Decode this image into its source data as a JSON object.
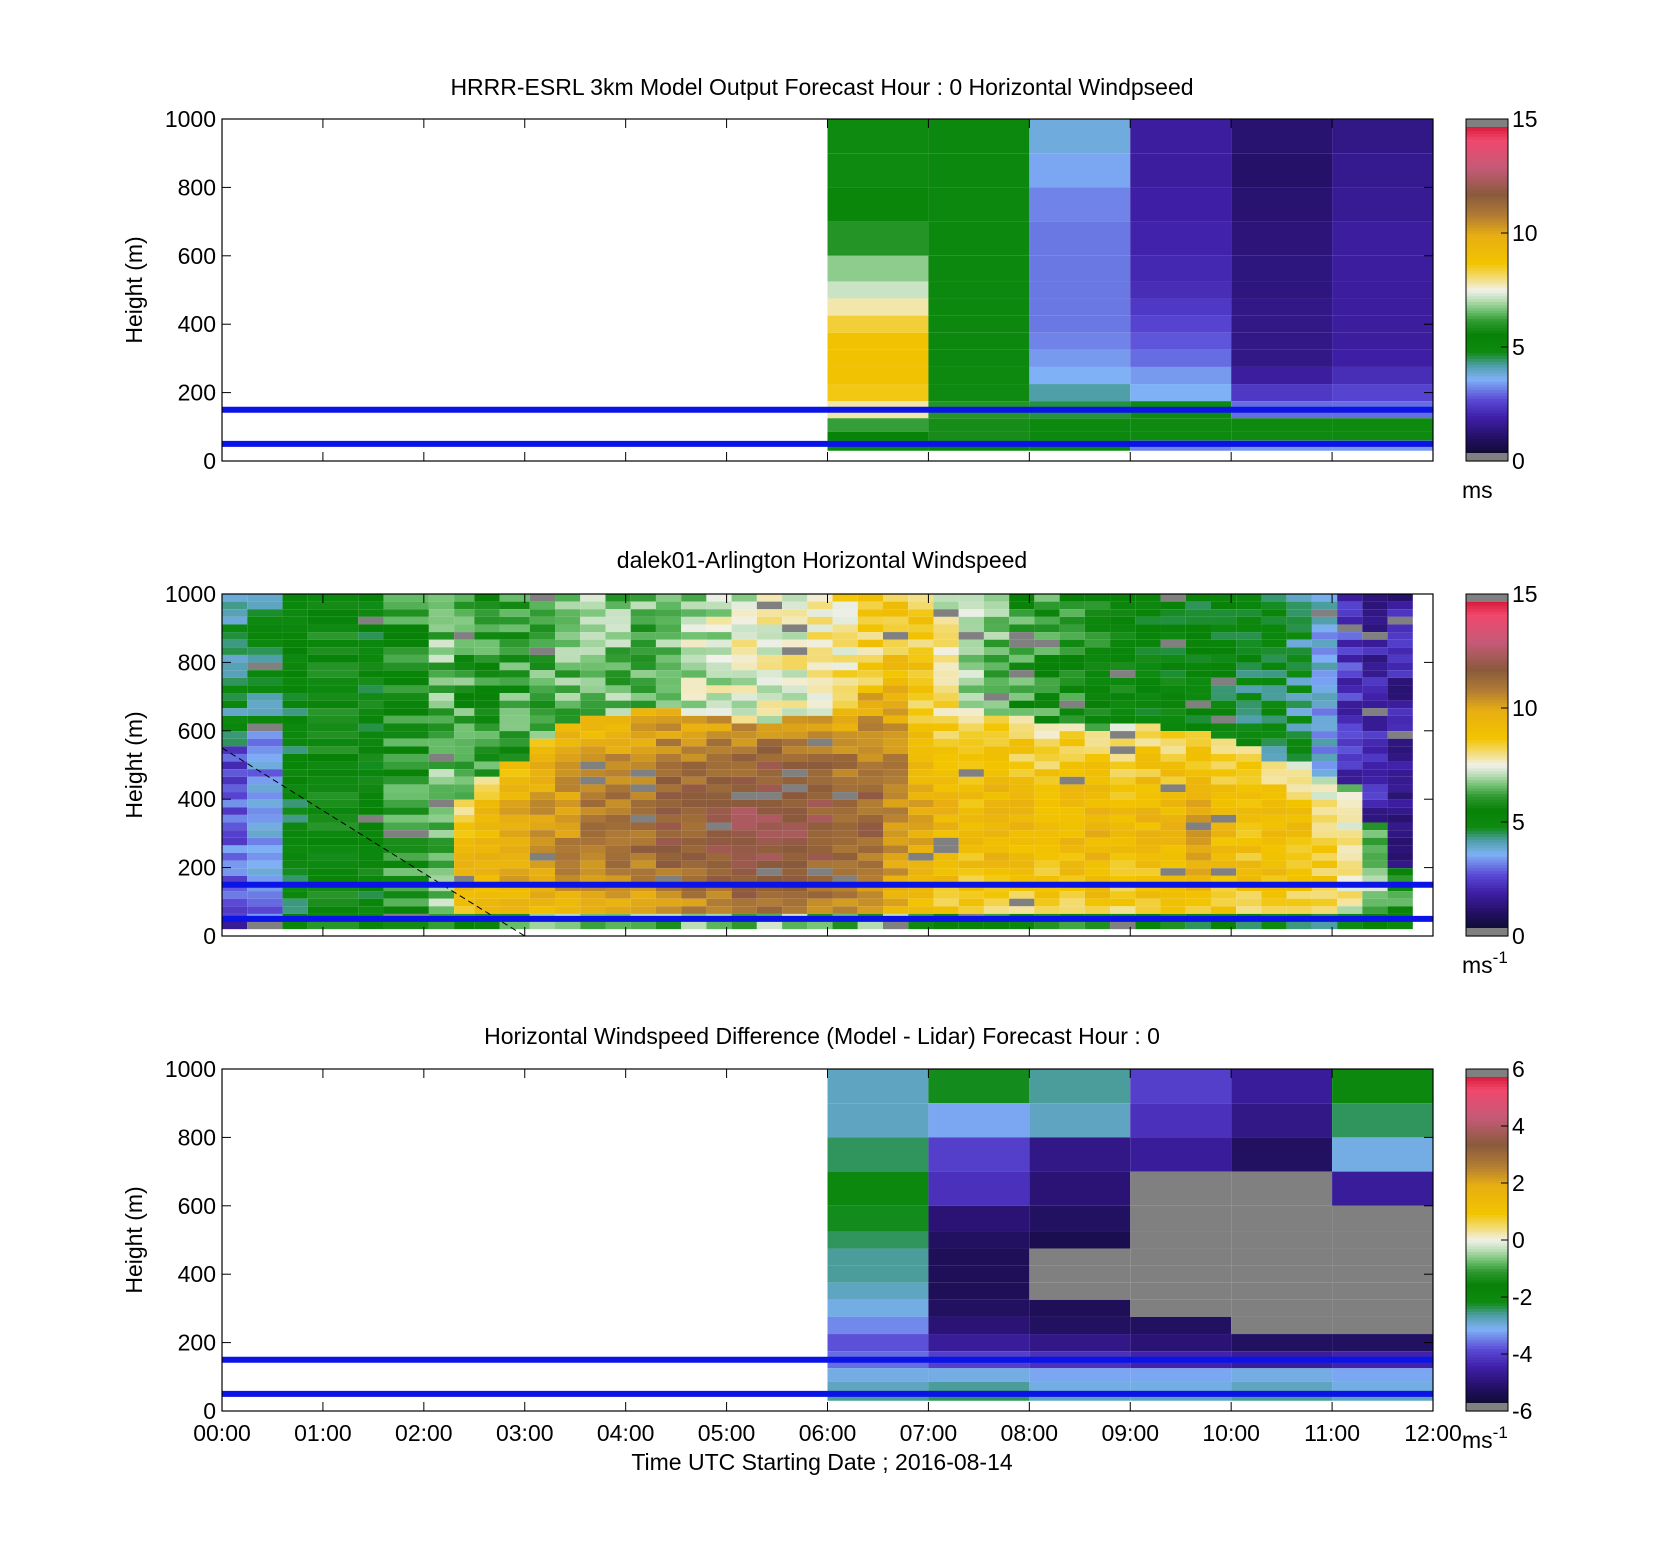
{
  "figure": {
    "xlabel": "Time UTC  Starting Date ; 2016-08-14",
    "x_ticks": [
      "00:00",
      "01:00",
      "02:00",
      "03:00",
      "04:00",
      "05:00",
      "06:00",
      "07:00",
      "08:00",
      "09:00",
      "10:00",
      "11:00",
      "12:00"
    ]
  },
  "chart_data": [
    {
      "type": "heatmap",
      "title": "HRRR-ESRL 3km Model Output   Forecast Hour : 0 Horizontal Windpseed",
      "ylabel": "Height (m)",
      "xlim_hours": [
        0,
        12
      ],
      "ylim": [
        0,
        1000
      ],
      "y_ticks": [
        0,
        200,
        400,
        600,
        800,
        1000
      ],
      "x_ticks_labeled": false,
      "colorbar": {
        "min": 0,
        "max": 15,
        "ticks": [
          0,
          5,
          10,
          15
        ],
        "unit": "ms",
        "unit_sup": ""
      },
      "reference_lines_m": [
        50,
        150
      ],
      "bin_top_m": 1000,
      "bin_bottom_m": 30,
      "hours": [
        6,
        7,
        8,
        9,
        10,
        11
      ],
      "heights_m": [
        950,
        850,
        750,
        650,
        550,
        500,
        450,
        400,
        350,
        300,
        250,
        200,
        150,
        100,
        70,
        50
      ],
      "values": [
        [
          4.8,
          4.8,
          5.2,
          6.0,
          6.8,
          7.2,
          7.8,
          8.4,
          8.8,
          8.8,
          8.8,
          8.6,
          7.8,
          6.2,
          5.5,
          5.0
        ],
        [
          5.0,
          5.0,
          5.0,
          5.0,
          5.0,
          5.0,
          5.0,
          5.0,
          5.0,
          5.0,
          4.9,
          4.8,
          6.0,
          5.8,
          5.8,
          5.4
        ],
        [
          3.8,
          3.5,
          3.2,
          3.1,
          3.1,
          3.1,
          3.1,
          3.1,
          3.2,
          3.4,
          3.6,
          4.2,
          4.6,
          4.9,
          5.0,
          5.0
        ],
        [
          1.8,
          1.8,
          1.9,
          2.0,
          2.1,
          2.2,
          2.4,
          2.6,
          2.8,
          3.0,
          3.4,
          3.6,
          4.8,
          4.8,
          4.8,
          3.2
        ],
        [
          1.2,
          1.1,
          1.2,
          1.3,
          1.4,
          1.4,
          1.5,
          1.5,
          1.5,
          1.5,
          1.8,
          2.4,
          3.0,
          4.8,
          4.8,
          3.4
        ],
        [
          1.5,
          1.6,
          1.7,
          1.8,
          1.8,
          1.8,
          1.8,
          1.8,
          1.8,
          1.9,
          2.2,
          2.6,
          3.0,
          4.8,
          4.8,
          3.4
        ]
      ]
    },
    {
      "type": "heatmap",
      "title": "dalek01-Arlington  Horizontal Windspeed",
      "ylabel": "Height (m)",
      "xlim_hours": [
        0,
        12
      ],
      "ylim": [
        0,
        1000
      ],
      "y_ticks": [
        0,
        200,
        400,
        600,
        800,
        1000
      ],
      "x_ticks_labeled": false,
      "colorbar": {
        "min": 0,
        "max": 15,
        "ticks": [
          0,
          5,
          10,
          15
        ],
        "unit": "ms",
        "unit_sup": "-1"
      },
      "reference_lines_m": [
        50,
        150
      ],
      "dashed_line": {
        "from": [
          0,
          550
        ],
        "to": [
          3.0,
          0
        ]
      },
      "profile_start_hours": [
        0.0,
        0.25,
        0.6,
        0.85,
        1.35,
        1.6,
        2.05,
        2.3,
        2.5,
        2.75,
        3.05,
        3.3,
        3.55,
        3.8,
        4.05,
        4.3,
        4.55,
        4.8,
        5.05,
        5.3,
        5.55,
        5.8,
        6.05,
        6.3,
        6.55,
        6.8,
        7.05,
        7.3,
        7.55,
        7.8,
        8.05,
        8.3,
        8.55,
        8.8,
        9.05,
        9.3,
        9.55,
        9.8,
        10.05,
        10.3,
        10.55,
        10.8,
        11.05,
        11.3,
        11.55
      ],
      "profile_end_hour": 11.8,
      "surface_m": [
        0,
        0,
        0,
        0,
        0,
        0,
        0,
        0,
        0,
        0,
        0,
        0,
        0,
        0,
        0,
        0,
        0,
        0,
        0,
        0,
        0,
        0,
        0,
        0,
        0,
        0,
        0,
        0,
        0,
        0,
        0,
        0,
        0,
        0,
        0,
        0,
        0,
        0,
        0,
        0,
        0,
        0,
        0,
        0,
        0
      ],
      "layer_top_m": [
        560,
        600,
        0,
        0,
        0,
        0,
        80,
        400,
        460,
        520,
        580,
        620,
        640,
        650,
        660,
        660,
        650,
        640,
        620,
        630,
        640,
        650,
        660,
        720,
        800,
        720,
        680,
        660,
        640,
        640,
        620,
        620,
        610,
        620,
        620,
        610,
        600,
        580,
        560,
        520,
        500,
        470,
        440,
        340,
        200
      ],
      "layer_core": [
        3.0,
        3.5,
        5.0,
        5.0,
        5.0,
        5.5,
        7.5,
        9.2,
        9.6,
        10.0,
        10.4,
        10.6,
        10.8,
        11.0,
        11.2,
        11.5,
        11.6,
        11.8,
        12.0,
        12.2,
        12.0,
        11.8,
        11.5,
        11.3,
        10.6,
        9.8,
        9.4,
        9.2,
        9.4,
        9.3,
        9.2,
        9.3,
        9.5,
        9.2,
        9.3,
        9.4,
        9.8,
        9.2,
        9.0,
        9.3,
        9.0,
        8.6,
        8.0,
        7.0,
        6.0
      ],
      "upper_speed": [
        4.5,
        4.6,
        5.0,
        5.4,
        5.2,
        6.0,
        6.6,
        6.2,
        6.0,
        6.2,
        6.4,
        6.6,
        6.8,
        6.6,
        6.5,
        6.8,
        7.0,
        7.2,
        7.4,
        7.4,
        7.6,
        7.8,
        8.0,
        8.4,
        8.8,
        8.6,
        7.6,
        7.0,
        6.6,
        6.2,
        6.0,
        5.8,
        5.6,
        5.4,
        5.3,
        5.2,
        5.2,
        5.0,
        4.8,
        4.6,
        4.4,
        3.6,
        2.4,
        2.0,
        1.8
      ],
      "lower_speed": [
        2.4,
        2.8,
        4.8,
        4.9,
        5.0,
        5.2,
        5.8,
        6.0,
        6.2,
        6.4,
        6.4,
        6.5,
        6.4,
        6.4,
        6.5,
        6.6,
        6.6,
        6.8,
        6.8,
        6.8,
        6.8,
        6.6,
        6.6,
        6.4,
        6.4,
        6.2,
        6.0,
        5.8,
        5.8,
        5.6,
        5.6,
        5.6,
        5.4,
        5.4,
        5.2,
        5.2,
        5.2,
        5.0,
        5.0,
        5.0,
        5.0,
        4.8,
        4.8,
        4.8,
        4.8
      ]
    },
    {
      "type": "heatmap",
      "title": "Horizontal Windspeed Difference (Model - Lidar) Forecast Hour : 0",
      "ylabel": "Height (m)",
      "xlim_hours": [
        0,
        12
      ],
      "ylim": [
        0,
        1000
      ],
      "y_ticks": [
        0,
        200,
        400,
        600,
        800,
        1000
      ],
      "x_ticks_labeled": true,
      "colorbar": {
        "min": -6,
        "max": 6,
        "ticks": [
          -6,
          -4,
          -2,
          0,
          2,
          4,
          6
        ],
        "unit": "ms",
        "unit_sup": "-1"
      },
      "reference_lines_m": [
        50,
        150
      ],
      "bin_top_m": 1000,
      "bin_bottom_m": 30,
      "hours": [
        6,
        7,
        8,
        9,
        10,
        11
      ],
      "heights_m": [
        950,
        850,
        750,
        650,
        550,
        500,
        450,
        400,
        350,
        300,
        250,
        200,
        150,
        100,
        70,
        50
      ],
      "values": [
        [
          -2.8,
          -2.8,
          -2.4,
          -2.0,
          -2.2,
          -2.4,
          -2.6,
          -2.6,
          -2.8,
          -3.0,
          -3.4,
          -3.8,
          -3.6,
          -3.0,
          -2.8,
          -2.6
        ],
        [
          -2.2,
          -3.2,
          -4.0,
          -4.2,
          -5.0,
          -5.2,
          -5.3,
          -5.3,
          -5.3,
          -5.2,
          -5.0,
          -4.6,
          -4.0,
          -3.0,
          -2.6,
          -2.4
        ],
        [
          -2.6,
          -2.8,
          -4.8,
          -5.0,
          -5.2,
          -5.4,
          "na",
          "na",
          "na",
          -5.3,
          -5.2,
          -4.8,
          -4.2,
          -3.2,
          -3.0,
          -2.8
        ],
        [
          -4.0,
          -4.2,
          -4.6,
          "na",
          "na",
          "na",
          "na",
          "na",
          "na",
          "na",
          -5.2,
          -5.0,
          -4.4,
          -3.2,
          -3.0,
          -2.8
        ],
        [
          -4.6,
          -4.8,
          -5.2,
          "na",
          "na",
          "na",
          "na",
          "na",
          "na",
          "na",
          "na",
          -5.2,
          -4.6,
          -3.0,
          -2.8,
          -2.6
        ],
        [
          -2.0,
          -2.4,
          -3.0,
          -4.6,
          "na",
          "na",
          "na",
          "na",
          "na",
          "na",
          "na",
          -5.2,
          -4.4,
          -3.2,
          -3.0,
          -2.8
        ]
      ]
    }
  ]
}
